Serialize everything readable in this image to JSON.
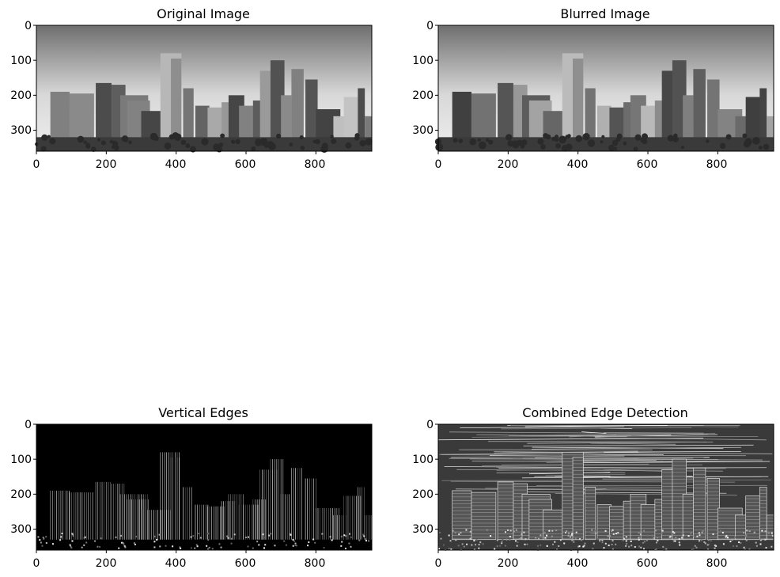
{
  "panels": [
    {
      "title": "Original Image",
      "style": "photo",
      "x_ticks": [
        "0",
        "200",
        "400",
        "600",
        "800"
      ],
      "y_ticks": [
        "0",
        "100",
        "200",
        "300"
      ]
    },
    {
      "title": "Blurred Image",
      "style": "photo",
      "x_ticks": [
        "0",
        "200",
        "400",
        "600",
        "800"
      ],
      "y_ticks": [
        "0",
        "100",
        "200",
        "300"
      ]
    },
    {
      "title": "Vertical Edges",
      "style": "edges-dark",
      "x_ticks": [
        "0",
        "200",
        "400",
        "600",
        "800"
      ],
      "y_ticks": [
        "0",
        "100",
        "200",
        "300"
      ]
    },
    {
      "title": "Combined Edge Detection",
      "style": "edges-textured",
      "x_ticks": [
        "0",
        "200",
        "400",
        "600",
        "800"
      ],
      "y_ticks": [
        "0",
        "100",
        "200",
        "300"
      ]
    }
  ],
  "image_extent": {
    "width": 960,
    "height": 360
  },
  "colors": {
    "axis": "#000000",
    "background": "#ffffff"
  }
}
